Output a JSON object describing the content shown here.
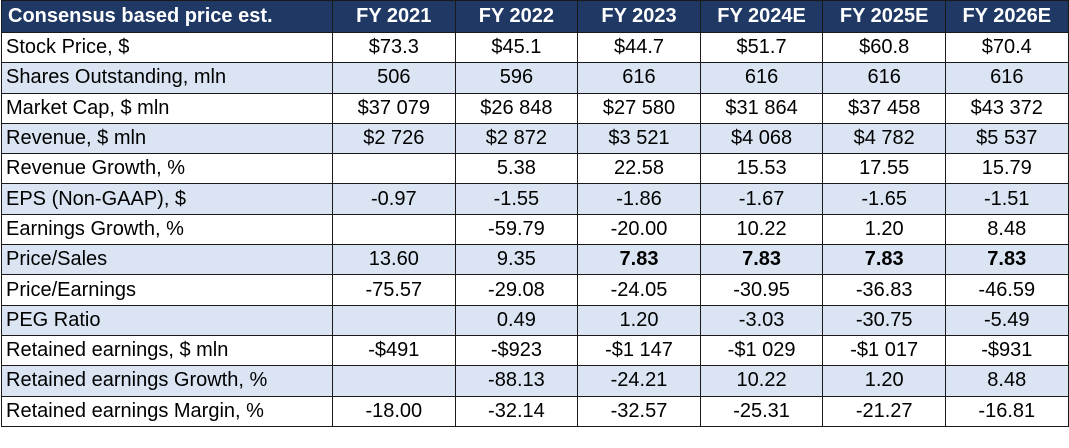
{
  "table": {
    "header": [
      "Consensus based price est.",
      "FY 2021",
      "FY 2022",
      "FY 2023",
      "FY 2024E",
      "FY 2025E",
      "FY 2026E"
    ],
    "rows": [
      {
        "label": "Stock Price, $",
        "values": [
          "$73.3",
          "$45.1",
          "$44.7",
          "$51.7",
          "$60.8",
          "$70.4"
        ]
      },
      {
        "label": "Shares Outstanding, mln",
        "values": [
          "506",
          "596",
          "616",
          "616",
          "616",
          "616"
        ]
      },
      {
        "label": "Market Cap, $ mln",
        "values": [
          "$37 079",
          "$26 848",
          "$27 580",
          "$31 864",
          "$37 458",
          "$43 372"
        ]
      },
      {
        "label": "Revenue, $ mln",
        "values": [
          "$2 726",
          "$2 872",
          "$3 521",
          "$4 068",
          "$4 782",
          "$5 537"
        ]
      },
      {
        "label": "Revenue Growth, %",
        "values": [
          "",
          "5.38",
          "22.58",
          "15.53",
          "17.55",
          "15.79"
        ]
      },
      {
        "label": "EPS (Non-GAAP), $",
        "values": [
          "-0.97",
          "-1.55",
          "-1.86",
          "-1.67",
          "-1.65",
          "-1.51"
        ]
      },
      {
        "label": "Earnings Growth, %",
        "values": [
          "",
          "-59.79",
          "-20.00",
          "10.22",
          "1.20",
          "8.48"
        ]
      },
      {
        "label": "Price/Sales",
        "values": [
          "13.60",
          "9.35",
          "7.83",
          "7.83",
          "7.83",
          "7.83"
        ]
      },
      {
        "label": "Price/Earnings",
        "values": [
          "-75.57",
          "-29.08",
          "-24.05",
          "-30.95",
          "-36.83",
          "-46.59"
        ]
      },
      {
        "label": "PEG Ratio",
        "values": [
          "",
          "0.49",
          "1.20",
          "-3.03",
          "-30.75",
          "-5.49"
        ]
      },
      {
        "label": "Retained earnings, $ mln",
        "values": [
          "-$491",
          "-$923",
          "-$1 147",
          "-$1 029",
          "-$1 017",
          "-$931"
        ]
      },
      {
        "label": "Retained earnings Growth, %",
        "values": [
          "",
          "-88.13",
          "-24.21",
          "10.22",
          "1.20",
          "8.48"
        ]
      },
      {
        "label": "Retained earnings Margin, %",
        "values": [
          "-18.00",
          "-32.14",
          "-32.57",
          "-25.31",
          "-21.27",
          "-16.81"
        ]
      }
    ]
  },
  "colors": {
    "header_bg": "#1f3864",
    "header_text": "#ffffff",
    "row_stripe": "#dae4f2",
    "row_plain": "#ffffff"
  }
}
